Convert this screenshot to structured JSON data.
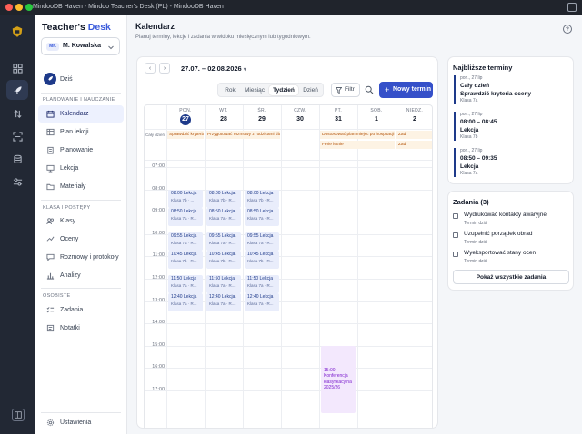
{
  "window": {
    "title": "MindooDB Haven - Mindoo Teacher's Desk (PL) - MindooDB Haven",
    "traffic_colors": [
      "#ff5f57",
      "#febc2e",
      "#28c840"
    ]
  },
  "brand": {
    "part1": "Teacher's",
    "part2": "Desk",
    "accent": "#3b5bdb"
  },
  "user": {
    "initials": "MK",
    "name": "M. Kowalska"
  },
  "home": {
    "label": "Dziś"
  },
  "sections": {
    "planning": "PLANOWANIE I NAUCZANIE",
    "classes": "KLASA I POSTĘPY",
    "personal": "OSOBISTE"
  },
  "nav": {
    "calendar": "Kalendarz",
    "lesson_plan": "Plan lekcji",
    "planning": "Planowanie",
    "lesson": "Lekcja",
    "materials": "Materiały",
    "classes": "Klasy",
    "grades": "Oceny",
    "talks": "Rozmowy i protokoły",
    "analytics": "Analizy",
    "tasks": "Zadania",
    "notes": "Notatki",
    "settings": "Ustawienia"
  },
  "page": {
    "title": "Kalendarz",
    "subtitle": "Planuj terminy, lekcje i zadania w widoku miesięcznym lub tygodniowym."
  },
  "toolbar": {
    "prev": "‹",
    "next": "›",
    "date_range": "27.07. – 02.08.2026",
    "views": [
      "Rok",
      "Miesiąc",
      "Tydzień",
      "Dzień"
    ],
    "selected_view": "Tydzień",
    "filter": "Filtr",
    "new_event": "Nowy termin"
  },
  "days": [
    {
      "name": "PON.",
      "num": "27",
      "today": true
    },
    {
      "name": "WT.",
      "num": "28"
    },
    {
      "name": "ŚR.",
      "num": "29"
    },
    {
      "name": "CZW.",
      "num": "30"
    },
    {
      "name": "PT.",
      "num": "31"
    },
    {
      "name": "SOB.",
      "num": "1"
    },
    {
      "name": "NIEDZ.",
      "num": "2"
    }
  ],
  "allday_label": "Cały dzień",
  "allday_events": [
    {
      "text": "Sprawdzić kryteria oceny",
      "day": 0,
      "span": 1,
      "row": 0
    },
    {
      "text": "Przygotować rozmowy z rodzicami dla 7b",
      "day": 1,
      "span": 2,
      "row": 0
    },
    {
      "text": "Dostosować plan miejsc po hospitacji",
      "day": 4,
      "span": 2,
      "row": 0
    },
    {
      "text": "Ferie letnie",
      "day": 4,
      "span": 2,
      "row": 1
    },
    {
      "text": "Zad",
      "day": 6,
      "span": 1,
      "row": 0
    },
    {
      "text": "Zad",
      "day": 6,
      "span": 1,
      "row": 1
    }
  ],
  "hours": [
    "07:00",
    "08:00",
    "09:00",
    "10:00",
    "11:00",
    "12:00",
    "13:00",
    "14:00",
    "15:00",
    "16:00",
    "17:00"
  ],
  "lessons": [
    {
      "day": 0,
      "time": "08:00 Lekcja",
      "sub": "Klasa 7b · ...",
      "start": 8.0
    },
    {
      "day": 0,
      "time": "08:50 Lekcja",
      "sub": "Klasa 7a · R...",
      "start": 8.83
    },
    {
      "day": 0,
      "time": "09:55 Lekcja",
      "sub": "Klasa 7a · R...",
      "start": 9.92
    },
    {
      "day": 0,
      "time": "10:45 Lekcja",
      "sub": "Klasa 7b · R...",
      "start": 10.75
    },
    {
      "day": 0,
      "time": "11:50 Lekcja",
      "sub": "Klasa 7a · R...",
      "start": 11.83
    },
    {
      "day": 0,
      "time": "12:40 Lekcja",
      "sub": "Klasa 7a · R...",
      "start": 12.67
    },
    {
      "day": 1,
      "time": "08:00 Lekcja",
      "sub": "Klasa 7b · R...",
      "start": 8.0
    },
    {
      "day": 1,
      "time": "08:50 Lekcja",
      "sub": "Klasa 7a · R...",
      "start": 8.83
    },
    {
      "day": 1,
      "time": "09:55 Lekcja",
      "sub": "Klasa 7a · R...",
      "start": 9.92
    },
    {
      "day": 1,
      "time": "10:45 Lekcja",
      "sub": "Klasa 7b · R...",
      "start": 10.75
    },
    {
      "day": 1,
      "time": "11:50 Lekcja",
      "sub": "Klasa 7a · R...",
      "start": 11.83
    },
    {
      "day": 1,
      "time": "12:40 Lekcja",
      "sub": "Klasa 7a · R...",
      "start": 12.67
    },
    {
      "day": 2,
      "time": "08:00 Lekcja",
      "sub": "Klasa 7b · R...",
      "start": 8.0
    },
    {
      "day": 2,
      "time": "08:50 Lekcja",
      "sub": "Klasa 7a · R...",
      "start": 8.83
    },
    {
      "day": 2,
      "time": "09:55 Lekcja",
      "sub": "Klasa 7a · R...",
      "start": 9.92
    },
    {
      "day": 2,
      "time": "10:45 Lekcja",
      "sub": "Klasa 7b · R...",
      "start": 10.75
    },
    {
      "day": 2,
      "time": "11:50 Lekcja",
      "sub": "Klasa 7a · R...",
      "start": 11.83
    },
    {
      "day": 2,
      "time": "12:40 Lekcja",
      "sub": "Klasa 7a · R...",
      "start": 12.67
    }
  ],
  "conference": {
    "text": "15:00 Konferencja klasyfikacyjna 2025/26",
    "day": 4,
    "start": 15.0,
    "end": 17.0
  },
  "upcoming": {
    "title": "Najbliższe terminy",
    "items": [
      {
        "date": "pon., 27.lip",
        "time": "Cały dzień",
        "name": "Sprawdzić kryteria oceny",
        "class": "Klasa 7a"
      },
      {
        "date": "pon., 27.lip",
        "time": "08:00 – 08:45",
        "name": "Lekcja",
        "class": "Klasa 7b"
      },
      {
        "date": "pon., 27.lip",
        "time": "08:50 – 09:35",
        "name": "Lekcja",
        "class": "Klasa 7a"
      }
    ]
  },
  "tasks": {
    "title": "Zadania (3)",
    "items": [
      {
        "title": "Wydrukować kontakty awaryjne",
        "due": "Termin dziś"
      },
      {
        "title": "Uzupełnić porządek obrad",
        "due": "Termin dziś"
      },
      {
        "title": "Wyeksportować stany ocen",
        "due": "Termin dziś"
      }
    ],
    "show_all": "Pokaż wszystkie zadania"
  }
}
